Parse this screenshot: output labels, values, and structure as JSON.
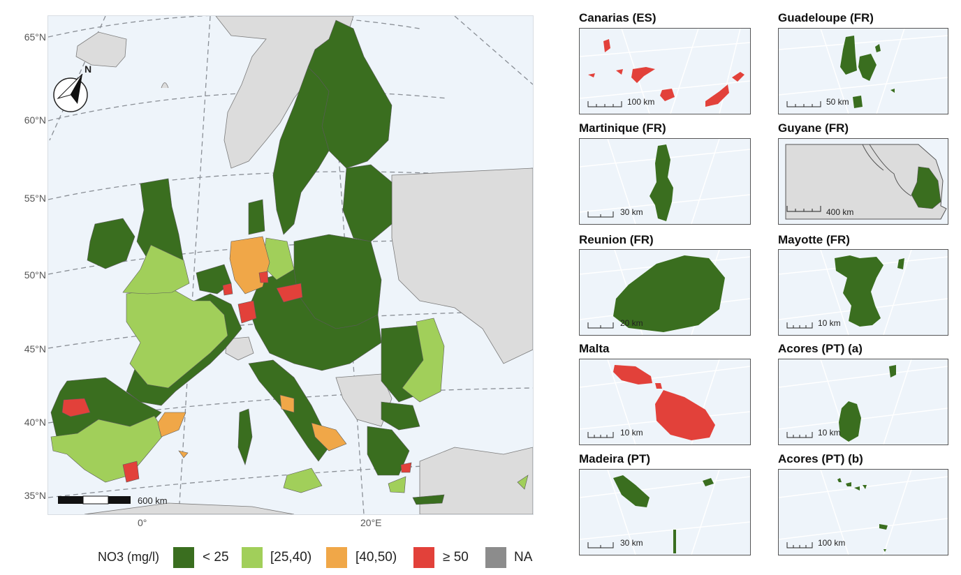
{
  "colors": {
    "lt25": "#3a6e1f",
    "c25_40": "#a1cf5a",
    "c40_50": "#f0a748",
    "ge50": "#e2413a",
    "na": "#8c8c8c",
    "nonEU": "#dcdcdc",
    "sea": "#eef4fa"
  },
  "main_map": {
    "lat_labels": [
      "65°N",
      "60°N",
      "55°N",
      "50°N",
      "45°N",
      "40°N",
      "35°N"
    ],
    "lon_labels": [
      "0°",
      "20°E"
    ],
    "north_label": "N",
    "scale_label": "600 km"
  },
  "legend": {
    "title": "NO3 (mg/l)",
    "items": [
      {
        "label": "< 25",
        "color": "#3a6e1f"
      },
      {
        "label": "[25,40)",
        "color": "#a1cf5a"
      },
      {
        "label": "[40,50)",
        "color": "#f0a748"
      },
      {
        "label": "≥ 50",
        "color": "#e2413a"
      },
      {
        "label": "NA",
        "color": "#8c8c8c"
      }
    ]
  },
  "insets": [
    {
      "title": "Canarias (ES)",
      "scale": "100 km",
      "class": "ge50"
    },
    {
      "title": "Guadeloupe (FR)",
      "scale": "50 km",
      "class": "lt25"
    },
    {
      "title": "Martinique (FR)",
      "scale": "30 km",
      "class": "lt25"
    },
    {
      "title": "Guyane (FR)",
      "scale": "400 km",
      "class": "lt25"
    },
    {
      "title": "Reunion (FR)",
      "scale": "20 km",
      "class": "lt25"
    },
    {
      "title": "Mayotte (FR)",
      "scale": "10 km",
      "class": "lt25"
    },
    {
      "title": "Malta",
      "scale": "10 km",
      "class": "ge50"
    },
    {
      "title": "Acores (PT) (a)",
      "scale": "10 km",
      "class": "lt25"
    },
    {
      "title": "Madeira (PT)",
      "scale": "30 km",
      "class": "lt25"
    },
    {
      "title": "Acores (PT) (b)",
      "scale": "100 km",
      "class": "lt25"
    }
  ]
}
